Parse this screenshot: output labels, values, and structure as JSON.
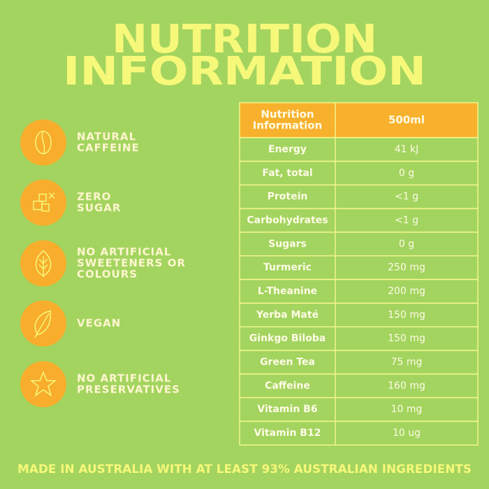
{
  "title": [
    "NUTRITION",
    "INFORMATION"
  ],
  "features": [
    {
      "lines": [
        "NATURAL",
        "CAFFEINE"
      ]
    },
    {
      "lines": [
        "ZERO",
        "SUGAR"
      ]
    },
    {
      "lines": [
        "NO ARTIFICIAL",
        "SWEETENERS OR",
        "COLOURS"
      ]
    },
    {
      "lines": [
        "VEGAN"
      ]
    },
    {
      "lines": [
        "NO ARTIFICIAL",
        "PRESERVATIVES"
      ]
    }
  ],
  "table": {
    "header": [
      [
        "Nutrition",
        "Information"
      ],
      [
        "500ml"
      ]
    ],
    "rows": [
      [
        "Energy",
        "41 kJ"
      ],
      [
        "Fat, total",
        "0 g"
      ],
      [
        "Protein",
        "<1 g"
      ],
      [
        "Carbohydrates",
        "<1 g"
      ],
      [
        "Sugars",
        "0 g"
      ],
      [
        "Turmeric",
        "250 mg"
      ],
      [
        "L-Theanine",
        "200 mg"
      ],
      [
        "Yerba Maté",
        "150 mg"
      ],
      [
        "Ginkgo Biloba",
        "150 mg"
      ],
      [
        "Green Tea",
        "75 mg"
      ],
      [
        "Caffeine",
        "160 mg"
      ],
      [
        "Vitamin B6",
        "10 mg"
      ],
      [
        "Vitamin B12",
        "10 ug"
      ]
    ]
  },
  "footer": "MADE IN AUSTRALIA WITH AT LEAST 93% AUSTRALIAN INGREDIENTS"
}
